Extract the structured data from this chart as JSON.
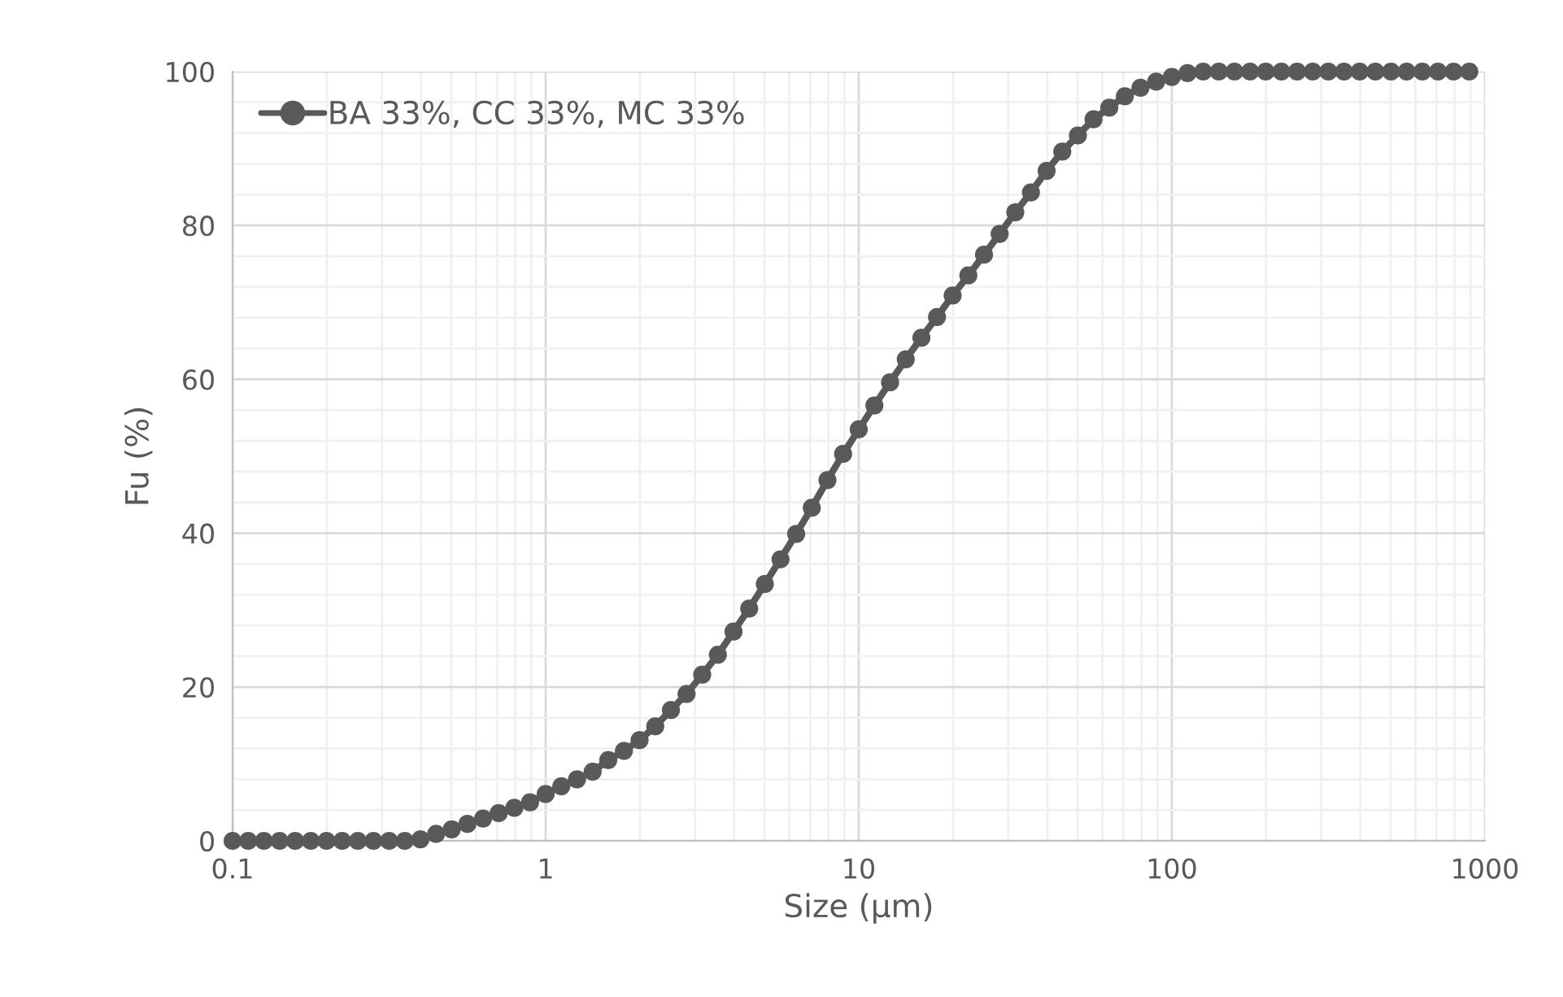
{
  "chart_data": {
    "type": "line",
    "xlabel": "Size (µm)",
    "ylabel": "Fu (%)",
    "log": "x",
    "x": [
      0.1,
      0.1122,
      0.1259,
      0.1413,
      0.1585,
      0.1778,
      0.1995,
      0.2239,
      0.2512,
      0.2818,
      0.3162,
      0.3548,
      0.3981,
      0.4467,
      0.5012,
      0.5623,
      0.631,
      0.7079,
      0.7943,
      0.8913,
      1,
      1.122,
      1.259,
      1.413,
      1.585,
      1.778,
      1.995,
      2.239,
      2.512,
      2.818,
      3.162,
      3.548,
      3.981,
      4.467,
      5.012,
      5.623,
      6.31,
      7.079,
      7.943,
      8.913,
      10,
      11.22,
      12.59,
      14.13,
      15.85,
      17.78,
      19.95,
      22.39,
      25.12,
      28.18,
      31.62,
      35.48,
      39.81,
      44.67,
      50.12,
      56.23,
      63.1,
      70.79,
      79.43,
      89.13,
      100,
      112.2,
      125.9,
      141.3,
      158.5,
      177.8,
      199.5,
      223.9,
      251.2,
      281.8,
      316.2,
      354.8,
      398.1,
      446.7,
      501.2,
      562.3,
      631,
      707.9,
      794.3,
      891.3
    ],
    "series": [
      {
        "name": "BA 33%, CC 33%, MC 33%",
        "color": "#595959",
        "values": [
          0,
          0,
          0,
          0,
          0,
          0,
          0,
          0,
          0,
          0,
          0,
          0,
          0.2,
          0.9,
          1.5,
          2.2,
          2.9,
          3.6,
          4.3,
          5.0,
          6.1,
          7.1,
          8.0,
          9.0,
          10.5,
          11.7,
          13.1,
          14.9,
          17.0,
          19.1,
          21.6,
          24.2,
          27.2,
          30.2,
          33.4,
          36.6,
          39.9,
          43.3,
          46.9,
          50.3,
          53.5,
          56.6,
          59.6,
          62.6,
          65.4,
          68.1,
          70.9,
          73.5,
          76.2,
          78.9,
          81.7,
          84.3,
          87.1,
          89.6,
          91.7,
          93.8,
          95.3,
          96.8,
          97.9,
          98.7,
          99.3,
          99.8,
          100,
          100,
          100,
          100,
          100,
          100,
          100,
          100,
          100,
          100,
          100,
          100,
          100,
          100,
          100,
          100,
          100,
          100
        ]
      }
    ],
    "xlim": [
      0.1,
      1000
    ],
    "xticks": [
      {
        "value": 0.1,
        "label": "0.1"
      },
      1,
      10,
      100,
      1000
    ],
    "ylim": [
      0,
      100
    ],
    "yticks": [
      0,
      20,
      40,
      60,
      80,
      100
    ],
    "grid": true,
    "legend": "top left",
    "marker": "circle",
    "line_style": "solid"
  }
}
